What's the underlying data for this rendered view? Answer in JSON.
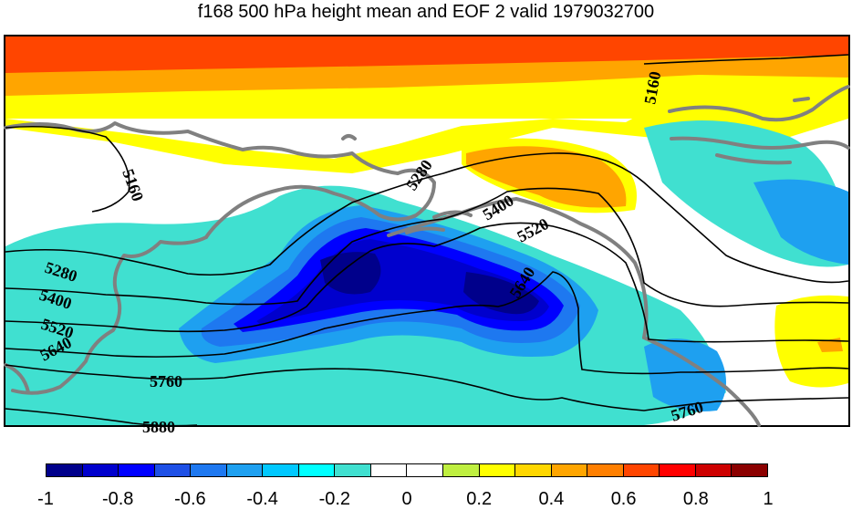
{
  "title": "f168 500 hPa height mean and EOF 2 valid 1979032700",
  "contour_labels": [
    "5160",
    "5160",
    "5280",
    "5280",
    "5400",
    "5400",
    "5520",
    "5520",
    "5640",
    "5640",
    "5760",
    "5760",
    "5880"
  ],
  "colorbar": {
    "colors": [
      "#00008b",
      "#0000cd",
      "#0000ff",
      "#1e50e6",
      "#1e78f0",
      "#1ea0f0",
      "#00c8ff",
      "#00ffff",
      "#40e0d0",
      "#ffffff",
      "#ffffff",
      "#bfef40",
      "#ffff00",
      "#ffd700",
      "#ffa500",
      "#ff7f00",
      "#ff4500",
      "#ff0000",
      "#cd0000",
      "#8b0000"
    ],
    "tick_labels": [
      "-1",
      "-0.8",
      "-0.6",
      "-0.4",
      "-0.2",
      "0",
      "0.2",
      "0.4",
      "0.6",
      "0.8",
      "1"
    ]
  },
  "chart_data": {
    "type": "contour-map",
    "title": "f168 500 hPa height mean and EOF 2 valid 1979032700",
    "contour_levels": [
      5160,
      5280,
      5400,
      5520,
      5640,
      5760,
      5880
    ],
    "colorbar_range": [
      -1,
      1
    ],
    "colorbar_ticks": [
      -1,
      -0.8,
      -0.6,
      -0.4,
      -0.2,
      0,
      0.2,
      0.4,
      0.6,
      0.8,
      1
    ]
  }
}
